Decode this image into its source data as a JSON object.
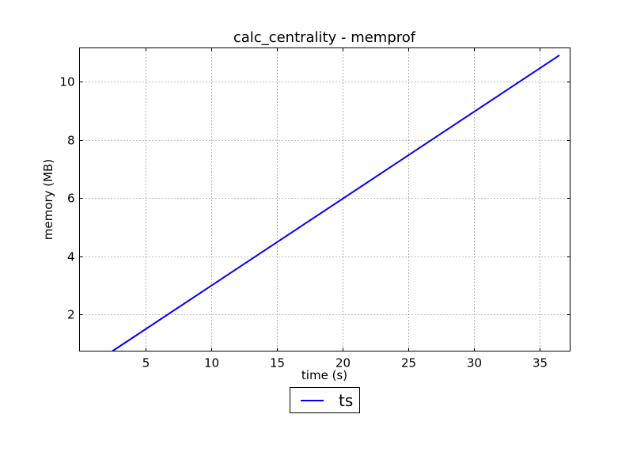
{
  "chart_data": {
    "type": "line",
    "title": "calc_centrality - memprof",
    "xlabel": "time (s)",
    "ylabel": "memory (MB)",
    "xlim": [
      0,
      37.3
    ],
    "ylim": [
      0.75,
      11.15
    ],
    "xticks": [
      5,
      10,
      15,
      20,
      25,
      30,
      35
    ],
    "yticks": [
      2,
      4,
      6,
      8,
      10
    ],
    "grid": true,
    "legend_position": "below-center",
    "series": [
      {
        "name": "ts",
        "color": "#0000ff",
        "x": [
          2.5,
          36.5
        ],
        "y": [
          0.75,
          10.9
        ]
      }
    ]
  }
}
